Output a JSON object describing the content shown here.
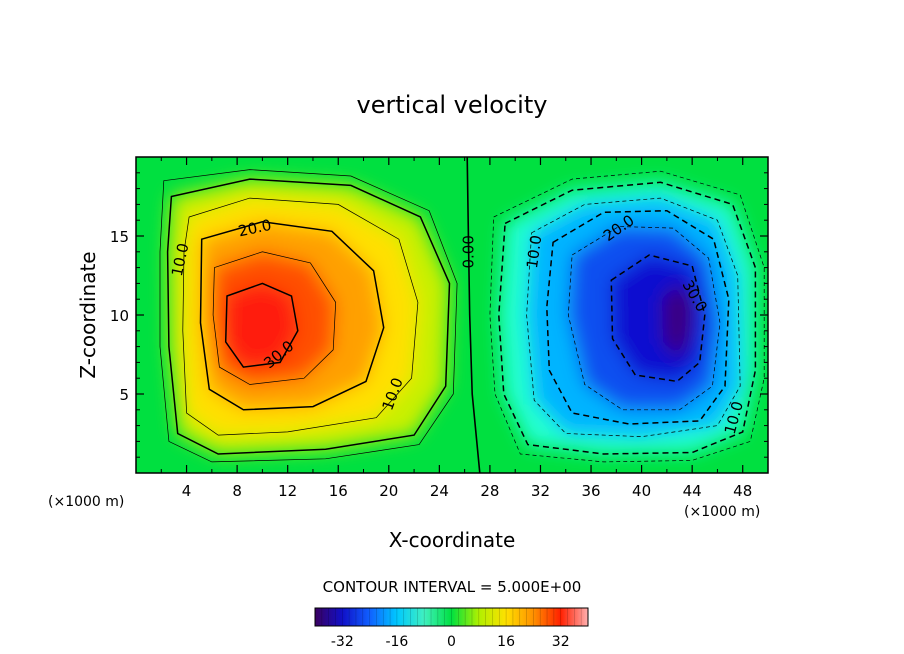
{
  "chart_data": {
    "type": "heatmap",
    "subtype": "filled-contour",
    "title": "vertical velocity",
    "xlabel": "X-coordinate",
    "ylabel": "Z-coordinate",
    "x_unit_left": "(×1000 m)",
    "x_unit_right": "(×1000 m)",
    "xlim": [
      0,
      50
    ],
    "ylim": [
      0,
      20
    ],
    "x_ticks": [
      "4",
      "8",
      "12",
      "16",
      "20",
      "24",
      "28",
      "32",
      "36",
      "40",
      "44",
      "48"
    ],
    "x_tick_values": [
      4,
      8,
      12,
      16,
      20,
      24,
      28,
      32,
      36,
      40,
      44,
      48
    ],
    "y_ticks": [
      "5",
      "10",
      "15"
    ],
    "y_tick_values": [
      5,
      10,
      15
    ],
    "contour_interval_text": "CONTOUR INTERVAL = 5.000E+00",
    "contour_labels": [
      {
        "text": "10.0",
        "x": 3.5,
        "y": 13.5,
        "angle": -78
      },
      {
        "text": "20.0",
        "x": 9.4,
        "y": 15.5,
        "angle": -12
      },
      {
        "text": "30.0",
        "x": 11.3,
        "y": 7.5,
        "angle": -40
      },
      {
        "text": "10.0",
        "x": 20.3,
        "y": 5.0,
        "angle": -70
      },
      {
        "text": "0.00",
        "x": 26.3,
        "y": 14.0,
        "angle": -90
      },
      {
        "text": "10.0",
        "x": 31.5,
        "y": 14.0,
        "angle": -82
      },
      {
        "text": "20.0",
        "x": 38.2,
        "y": 15.5,
        "angle": -35
      },
      {
        "text": "30.0",
        "x": 44.2,
        "y": 11.2,
        "angle": 60
      },
      {
        "text": "10.0",
        "x": 47.3,
        "y": 3.5,
        "angle": -75
      }
    ],
    "positive_cell": {
      "center": [
        9.5,
        9.0
      ],
      "max": 37
    },
    "negative_cell": {
      "center": [
        42.5,
        10.0
      ],
      "min": -37
    },
    "colorbar": {
      "min": -40,
      "max": 40,
      "ticks": [
        "-32",
        "-16",
        "0",
        "16",
        "32"
      ],
      "tick_values": [
        -32,
        -16,
        0,
        16,
        32
      ]
    },
    "colormap": [
      "#3a0060",
      "#1010c8",
      "#1060ff",
      "#00c8ff",
      "#40f0c0",
      "#00e040",
      "#b0f000",
      "#ffe000",
      "#ff9000",
      "#ff2000",
      "#ffb0b0"
    ]
  }
}
